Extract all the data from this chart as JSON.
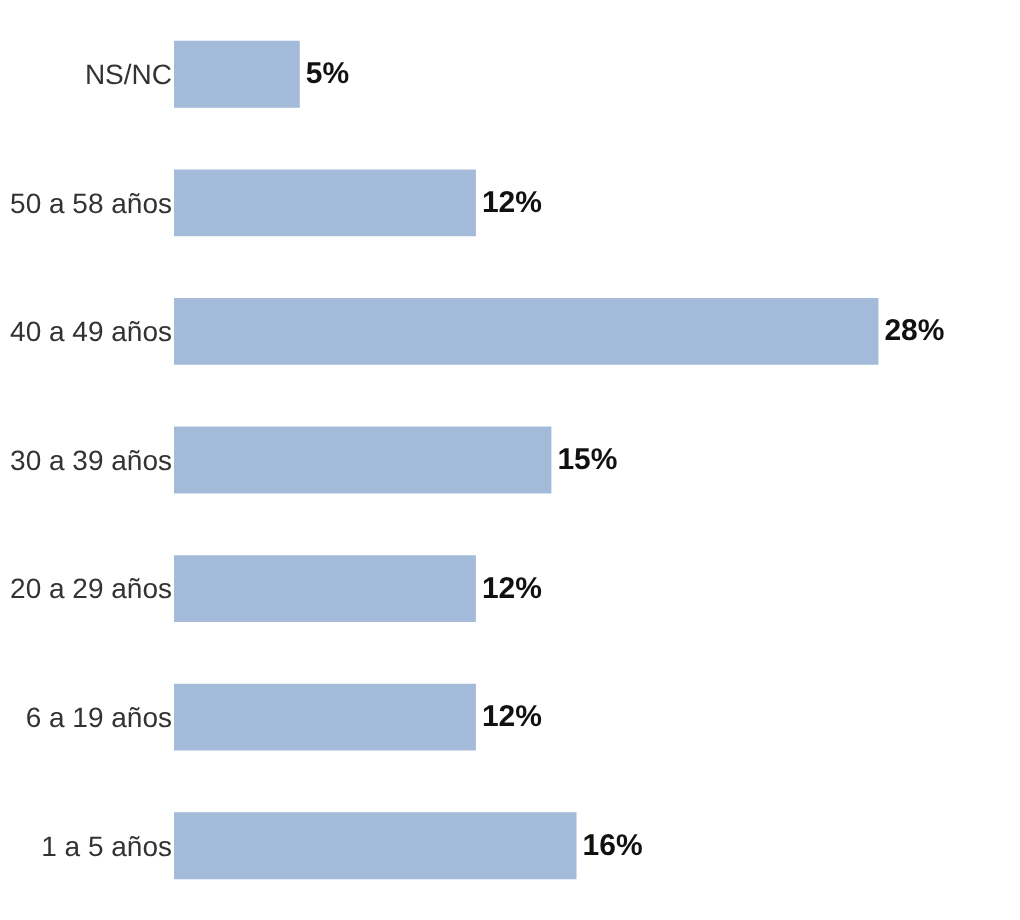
{
  "chart_data": {
    "type": "bar",
    "orientation": "horizontal",
    "categories": [
      "NS/NC",
      "50 a 58 años",
      "40 a 49 años",
      "30 a 39 años",
      "20 a 29 años",
      "6 a 19 años",
      "1 a 5 años"
    ],
    "values": [
      5,
      12,
      28,
      15,
      12,
      12,
      16
    ],
    "value_labels": [
      "5%",
      "12%",
      "28%",
      "15%",
      "12%",
      "12%",
      "16%"
    ],
    "color": "#a3bbd9"
  }
}
